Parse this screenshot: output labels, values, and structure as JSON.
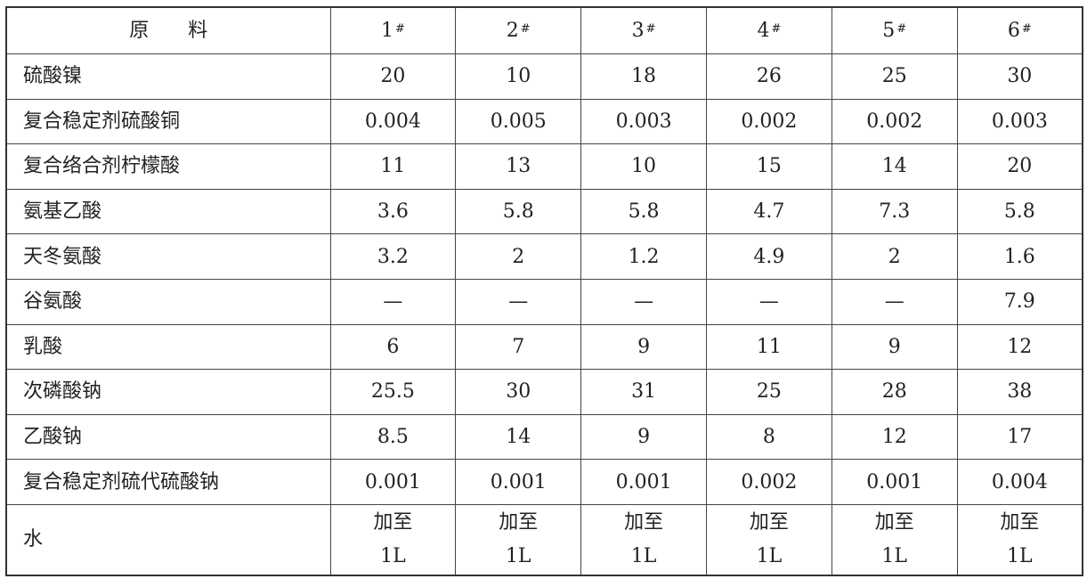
{
  "table": {
    "header": {
      "name": "原　　料",
      "columns": [
        "1",
        "2",
        "3",
        "4",
        "5",
        "6"
      ],
      "column_mark": "#"
    },
    "rows": [
      {
        "name": "硫酸镍",
        "values": [
          "20",
          "10",
          "18",
          "26",
          "25",
          "30"
        ]
      },
      {
        "name": "复合稳定剂硫酸铜",
        "values": [
          "0.004",
          "0.005",
          "0.003",
          "0.002",
          "0.002",
          "0.003"
        ]
      },
      {
        "name": "复合络合剂柠檬酸",
        "values": [
          "11",
          "13",
          "10",
          "15",
          "14",
          "20"
        ]
      },
      {
        "name": "氨基乙酸",
        "values": [
          "3.6",
          "5.8",
          "5.8",
          "4.7",
          "7.3",
          "5.8"
        ]
      },
      {
        "name": "天冬氨酸",
        "values": [
          "3.2",
          "2",
          "1.2",
          "4.9",
          "2",
          "1.6"
        ]
      },
      {
        "name": "谷氨酸",
        "values": [
          "—",
          "—",
          "—",
          "—",
          "—",
          "7.9"
        ]
      },
      {
        "name": "乳酸",
        "values": [
          "6",
          "7",
          "9",
          "11",
          "9",
          "12"
        ]
      },
      {
        "name": "次磷酸钠",
        "values": [
          "25.5",
          "30",
          "31",
          "25",
          "28",
          "38"
        ]
      },
      {
        "name": "乙酸钠",
        "values": [
          "8.5",
          "14",
          "9",
          "8",
          "12",
          "17"
        ]
      },
      {
        "name": "复合稳定剂硫代硫酸钠",
        "values": [
          "0.001",
          "0.001",
          "0.001",
          "0.002",
          "0.001",
          "0.004"
        ]
      }
    ],
    "water_row": {
      "name": "水",
      "line1": "加至",
      "line2": "1L"
    }
  }
}
